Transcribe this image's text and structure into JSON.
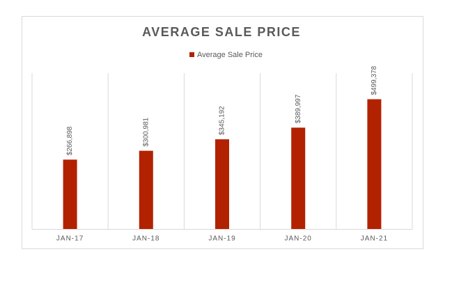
{
  "chart_data": {
    "type": "bar",
    "title": "AVERAGE SALE PRICE",
    "categories": [
      "JAN-17",
      "JAN-18",
      "JAN-19",
      "JAN-20",
      "JAN-21"
    ],
    "series": [
      {
        "name": "Average Sale Price",
        "color": "#b22200",
        "values": [
          266898,
          300981,
          345192,
          389997,
          499378
        ],
        "value_labels": [
          "$266,898",
          "$300,981",
          "$345,192",
          "$389,997",
          "$499,378"
        ]
      }
    ],
    "ylim": [
      0,
      600000
    ],
    "legend": "top"
  }
}
